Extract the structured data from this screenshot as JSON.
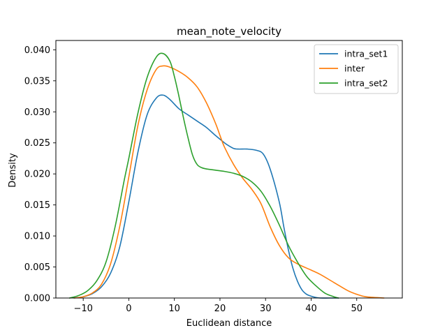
{
  "chart_data": {
    "type": "line",
    "title": "mean_note_velocity",
    "xlabel": "Euclidean distance",
    "ylabel": "Density",
    "xlim": [
      -16,
      60
    ],
    "ylim": [
      0,
      0.0415
    ],
    "xticks": [
      -10,
      0,
      10,
      20,
      30,
      40,
      50
    ],
    "xtick_labels": [
      "−10",
      "0",
      "10",
      "20",
      "30",
      "40",
      "50"
    ],
    "yticks": [
      0,
      0.005,
      0.01,
      0.015,
      0.02,
      0.025,
      0.03,
      0.035,
      0.04
    ],
    "ytick_labels": [
      "0.000",
      "0.005",
      "0.010",
      "0.015",
      "0.020",
      "0.025",
      "0.030",
      "0.035",
      "0.040"
    ],
    "grid": false,
    "legend_position": "top-right",
    "series": [
      {
        "name": "intra_set1",
        "color": "#1f77b4",
        "x": [
          -12,
          -10,
          -8,
          -6,
          -4,
          -2,
          0,
          2,
          4,
          6,
          7.5,
          9,
          11,
          13,
          15,
          17,
          19,
          21,
          22,
          23,
          24,
          26,
          28,
          29.5,
          31,
          33,
          34,
          35,
          36,
          37,
          38,
          39,
          40,
          41,
          42,
          44,
          46
        ],
        "y": [
          0.0,
          0.0002,
          0.0007,
          0.0018,
          0.004,
          0.0082,
          0.0155,
          0.0235,
          0.0295,
          0.0322,
          0.0327,
          0.032,
          0.0305,
          0.0295,
          0.0285,
          0.0275,
          0.0262,
          0.025,
          0.0245,
          0.0241,
          0.024,
          0.024,
          0.0238,
          0.0232,
          0.0208,
          0.0155,
          0.0115,
          0.0078,
          0.0048,
          0.0027,
          0.0013,
          0.0006,
          0.0003,
          0.0001,
          0.0,
          0.0,
          0.0
        ]
      },
      {
        "name": "inter",
        "color": "#ff7f0e",
        "x": [
          -12,
          -10,
          -8,
          -6,
          -4,
          -2,
          0,
          2,
          4,
          6,
          7.5,
          9,
          11,
          13,
          15,
          17,
          19,
          20,
          21,
          23,
          25,
          27,
          29,
          31,
          33,
          35,
          37,
          40,
          42,
          45,
          48,
          50,
          52,
          56
        ],
        "y": [
          0.0,
          0.0002,
          0.0008,
          0.0022,
          0.0055,
          0.0115,
          0.0195,
          0.0278,
          0.0335,
          0.0368,
          0.0374,
          0.0372,
          0.0365,
          0.0355,
          0.034,
          0.0315,
          0.0282,
          0.0262,
          0.0243,
          0.0215,
          0.0193,
          0.0175,
          0.0152,
          0.0115,
          0.0085,
          0.0065,
          0.0055,
          0.0045,
          0.0038,
          0.0025,
          0.0012,
          0.0006,
          0.0002,
          0.0
        ]
      },
      {
        "name": "intra_set2",
        "color": "#2ca02c",
        "x": [
          -13,
          -11,
          -9,
          -7,
          -5,
          -3,
          -1,
          0,
          2,
          4,
          6,
          7.5,
          9,
          10,
          11,
          12,
          13,
          14,
          15,
          16,
          17,
          18,
          19,
          21,
          23,
          25,
          27,
          29,
          31,
          33,
          35,
          37,
          39,
          41,
          43,
          45,
          46
        ],
        "y": [
          0.0,
          0.0004,
          0.0012,
          0.0028,
          0.0058,
          0.0115,
          0.019,
          0.0225,
          0.0298,
          0.0355,
          0.0388,
          0.0394,
          0.0382,
          0.0357,
          0.0325,
          0.029,
          0.0258,
          0.023,
          0.0215,
          0.021,
          0.0208,
          0.0207,
          0.0206,
          0.0204,
          0.0201,
          0.0196,
          0.0187,
          0.0172,
          0.0148,
          0.0118,
          0.0085,
          0.0058,
          0.0035,
          0.002,
          0.0008,
          0.0002,
          0.0
        ]
      }
    ]
  }
}
